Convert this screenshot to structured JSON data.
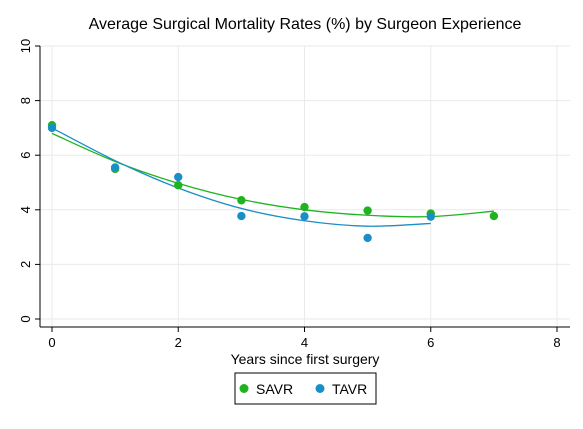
{
  "chart_data": {
    "type": "scatter",
    "title": "Average Surgical Mortality Rates (%) by Surgeon Experience",
    "xlabel": "Years since first surgery",
    "ylabel": "",
    "xlim": [
      0,
      8
    ],
    "ylim": [
      0,
      10
    ],
    "xticks": [
      0,
      2,
      4,
      6,
      8
    ],
    "yticks": [
      0,
      2,
      4,
      6,
      8,
      10
    ],
    "grid": true,
    "legend_position": "bottom",
    "series": [
      {
        "name": "SAVR",
        "color": "#1fb31f",
        "points": [
          {
            "x": 0,
            "y": 7.1
          },
          {
            "x": 1,
            "y": 5.5
          },
          {
            "x": 2,
            "y": 4.9
          },
          {
            "x": 3,
            "y": 4.35
          },
          {
            "x": 4,
            "y": 4.1
          },
          {
            "x": 5,
            "y": 3.97
          },
          {
            "x": 6,
            "y": 3.86
          },
          {
            "x": 7,
            "y": 3.77
          }
        ],
        "fit": {
          "type": "quadratic",
          "x_range": [
            0,
            7
          ],
          "curve": [
            [
              0,
              6.8
            ],
            [
              1,
              5.77
            ],
            [
              2,
              4.97
            ],
            [
              3,
              4.38
            ],
            [
              4,
              4.0
            ],
            [
              5,
              3.8
            ],
            [
              6,
              3.75
            ],
            [
              7,
              3.95
            ]
          ]
        }
      },
      {
        "name": "TAVR",
        "color": "#1a8fc6",
        "points": [
          {
            "x": 0,
            "y": 7.0
          },
          {
            "x": 1,
            "y": 5.55
          },
          {
            "x": 2,
            "y": 5.2
          },
          {
            "x": 3,
            "y": 3.77
          },
          {
            "x": 4,
            "y": 3.76
          },
          {
            "x": 5,
            "y": 2.97
          },
          {
            "x": 6,
            "y": 3.75
          }
        ],
        "fit": {
          "type": "quadratic",
          "x_range": [
            0,
            6
          ],
          "curve": [
            [
              0,
              7.0
            ],
            [
              1,
              5.8
            ],
            [
              2,
              4.8
            ],
            [
              3,
              4.05
            ],
            [
              4,
              3.6
            ],
            [
              5,
              3.4
            ],
            [
              6,
              3.5
            ]
          ]
        }
      }
    ]
  }
}
